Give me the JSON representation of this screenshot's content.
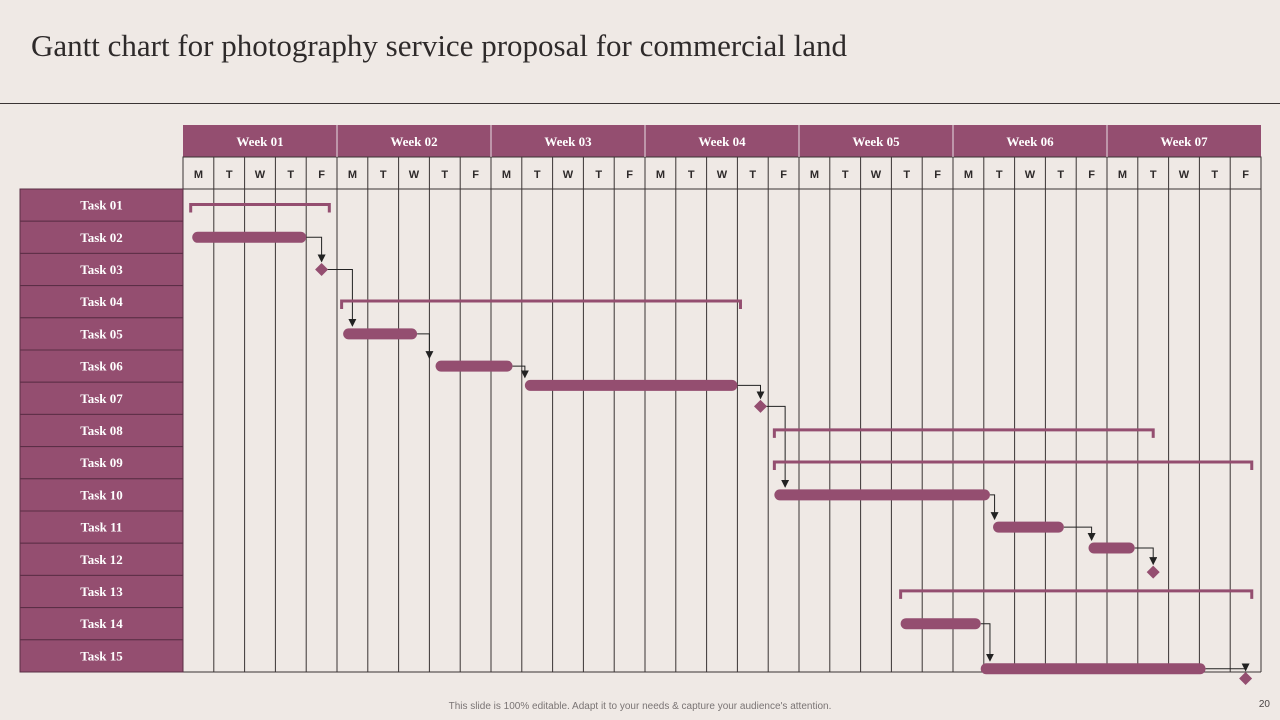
{
  "title": "Gantt chart for photography service proposal for commercial land",
  "footer": "This slide is 100% editable. Adapt it to your needs & capture your audience's attention.",
  "page_number": "20",
  "colors": {
    "accent": "#944e70",
    "background": "#efe9e5",
    "grid": "#3a3434",
    "header_text": "#ffffff",
    "connector": "#222222"
  },
  "chart_data": {
    "type": "gantt",
    "unit": "working day (day 0 = Week 01 Monday)",
    "weeks": [
      "Week 01",
      "Week 02",
      "Week 03",
      "Week 04",
      "Week 05",
      "Week 06",
      "Week 07"
    ],
    "days": [
      "M",
      "T",
      "W",
      "T",
      "F"
    ],
    "tasks": [
      "Task 01",
      "Task 02",
      "Task 03",
      "Task 04",
      "Task 05",
      "Task 06",
      "Task 07",
      "Task 08",
      "Task 09",
      "Task 10",
      "Task 11",
      "Task 12",
      "Task 13",
      "Task 14",
      "Task 15"
    ],
    "summaries": [
      {
        "task": 0,
        "start": 0.25,
        "end": 4.75
      },
      {
        "task": 3,
        "start": 5.15,
        "end": 18.1
      },
      {
        "task": 7,
        "start": 19.2,
        "end": 31.5
      },
      {
        "task": 8,
        "start": 19.2,
        "end": 34.7
      },
      {
        "task": 12,
        "start": 23.3,
        "end": 34.7
      }
    ],
    "bars": [
      {
        "task": 1,
        "start": 0.3,
        "end": 4.0,
        "offset": 0
      },
      {
        "task": 4,
        "start": 5.2,
        "end": 7.6,
        "offset": 0
      },
      {
        "task": 5,
        "start": 8.2,
        "end": 10.7,
        "offset": 0
      },
      {
        "task": 6,
        "start": 11.1,
        "end": 18.0,
        "offset": -0.4
      },
      {
        "task": 9,
        "start": 19.2,
        "end": 26.2,
        "offset": 0
      },
      {
        "task": 10,
        "start": 26.3,
        "end": 28.6,
        "offset": 0
      },
      {
        "task": 11,
        "start": 29.4,
        "end": 30.9,
        "offset": -0.35
      },
      {
        "task": 13,
        "start": 23.3,
        "end": 25.9,
        "offset": 0
      },
      {
        "task": 14,
        "start": 25.9,
        "end": 33.2,
        "offset": 0.4
      }
    ],
    "milestones": [
      {
        "task": 2,
        "at": 4.5,
        "offset": 0
      },
      {
        "task": 6,
        "at": 18.75,
        "offset": 0.25
      },
      {
        "task": 11,
        "at": 31.5,
        "offset": 0.4
      },
      {
        "task": 14,
        "at": 34.5,
        "offset": 0.7
      }
    ],
    "links": [
      {
        "from_task": 1,
        "from_day": 4.0,
        "from_offset": 0,
        "to_task": 2,
        "to_day": 4.5,
        "to_offset": 0
      },
      {
        "from_task": 2,
        "from_day": 4.5,
        "from_offset": 0,
        "to_task": 4,
        "to_day": 5.5,
        "to_offset": 0
      },
      {
        "from_task": 4,
        "from_day": 7.6,
        "from_offset": 0,
        "to_task": 5,
        "to_day": 8.0,
        "to_offset": 0
      },
      {
        "from_task": 5,
        "from_day": 10.7,
        "from_offset": 0,
        "to_task": 6,
        "to_day": 11.1,
        "to_offset": -0.4
      },
      {
        "from_task": 6,
        "from_day": 18.0,
        "from_offset": -0.4,
        "to_task": 6,
        "to_day": 18.75,
        "to_offset": 0.25
      },
      {
        "from_task": 6,
        "from_day": 18.75,
        "from_offset": 0.25,
        "to_task": 9,
        "to_day": 19.55,
        "to_offset": 0
      },
      {
        "from_task": 9,
        "from_day": 26.2,
        "from_offset": 0,
        "to_task": 10,
        "to_day": 26.35,
        "to_offset": 0
      },
      {
        "from_task": 10,
        "from_day": 28.6,
        "from_offset": 0,
        "to_task": 11,
        "to_day": 29.5,
        "to_offset": -0.35
      },
      {
        "from_task": 11,
        "from_day": 30.9,
        "from_offset": -0.35,
        "to_task": 11,
        "to_day": 31.5,
        "to_offset": 0.4
      },
      {
        "from_task": 13,
        "from_day": 25.9,
        "from_offset": 0,
        "to_task": 14,
        "to_day": 26.2,
        "to_offset": 0.4
      },
      {
        "from_task": 14,
        "from_day": 33.2,
        "from_offset": 0.4,
        "to_task": 14,
        "to_day": 34.5,
        "to_offset": 0.7
      }
    ]
  }
}
